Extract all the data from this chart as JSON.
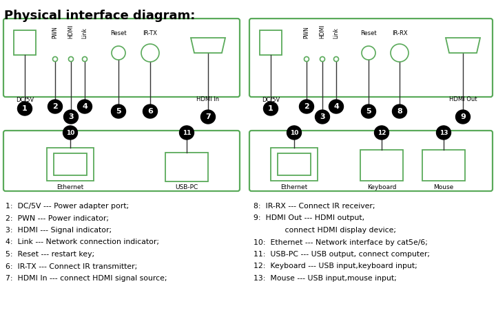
{
  "title": "Physical interface diagram:",
  "bg_color": "#ffffff",
  "text_color": "#000000",
  "green_color": "#5aaa5a",
  "black_circle_color": "#000000",
  "white_text_color": "#ffffff",
  "legend_left": [
    [
      "1:  DC/5V --- Power adapter port;"
    ],
    [
      "2:  PWN --- Power indicator;"
    ],
    [
      "3:  HDMI --- Signal indicator;"
    ],
    [
      "4:  Link --- Network connection indicator;"
    ],
    [
      "5:  Reset --- restart key;"
    ],
    [
      "6:  IR-TX --- Connect IR transmitter;"
    ],
    [
      "7:  HDMI In --- connect HDMI signal source;"
    ]
  ],
  "legend_right": [
    [
      "8:  IR-RX --- Connect IR receiver;"
    ],
    [
      "9:  HDMI Out --- HDMI output,",
      "              connect HDMI display device;"
    ],
    [
      "10:  Ethernet --- Network interface by cat5e/6;"
    ],
    [
      "11:  USB-PC --- USB output, connect computer;"
    ],
    [
      "12:  Keyboard --- USB input,keyboard input;"
    ],
    [
      "13:  Mouse --- USB input,mouse input;"
    ]
  ]
}
